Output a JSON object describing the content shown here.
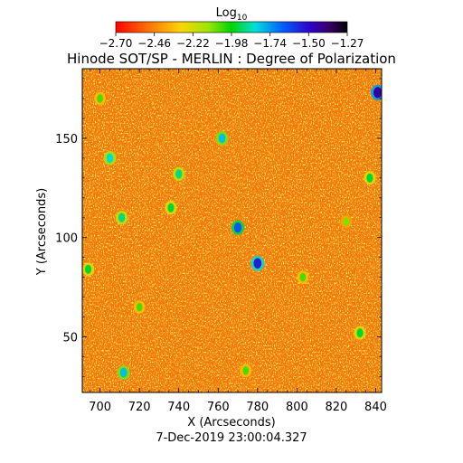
{
  "chart_data": {
    "type": "heatmap",
    "title": "Hinode SOT/SP - MERLIN : Degree of Polarization",
    "colorbar": {
      "label_main": "Log",
      "label_sub": "10",
      "ticks": [
        "-2.70",
        "-2.46",
        "-2.22",
        "-1.98",
        "-1.74",
        "-1.50",
        "-1.27"
      ],
      "range": [
        -2.7,
        -1.27
      ],
      "colormap": "rainbow (red-orange-yellow-green-cyan-blue-purple-black)"
    },
    "xlabel": "X (Arcseconds)",
    "ylabel": "Y (Arcseconds)",
    "xlim": [
      691,
      843
    ],
    "ylim": [
      22,
      185
    ],
    "xticks": [
      700,
      720,
      740,
      760,
      780,
      800,
      820,
      840
    ],
    "yticks": [
      50,
      100,
      150
    ],
    "background_level": -2.62,
    "features": [
      {
        "x": 780,
        "y": 87,
        "value": -1.55
      },
      {
        "x": 770,
        "y": 105,
        "value": -1.65
      },
      {
        "x": 841,
        "y": 173,
        "value": -1.45
      },
      {
        "x": 762,
        "y": 150,
        "value": -1.8
      },
      {
        "x": 705,
        "y": 140,
        "value": -1.85
      },
      {
        "x": 711,
        "y": 110,
        "value": -1.9
      },
      {
        "x": 736,
        "y": 115,
        "value": -1.95
      },
      {
        "x": 694,
        "y": 84,
        "value": -1.95
      },
      {
        "x": 740,
        "y": 132,
        "value": -1.9
      },
      {
        "x": 837,
        "y": 130,
        "value": -1.95
      },
      {
        "x": 712,
        "y": 32,
        "value": -1.8
      },
      {
        "x": 832,
        "y": 52,
        "value": -1.95
      },
      {
        "x": 720,
        "y": 65,
        "value": -2.05
      },
      {
        "x": 774,
        "y": 33,
        "value": -2.05
      },
      {
        "x": 803,
        "y": 80,
        "value": -2.05
      },
      {
        "x": 825,
        "y": 108,
        "value": -2.1
      },
      {
        "x": 700,
        "y": 170,
        "value": -2.05
      }
    ],
    "footer": "7-Dec-2019 23:00:04.327"
  }
}
